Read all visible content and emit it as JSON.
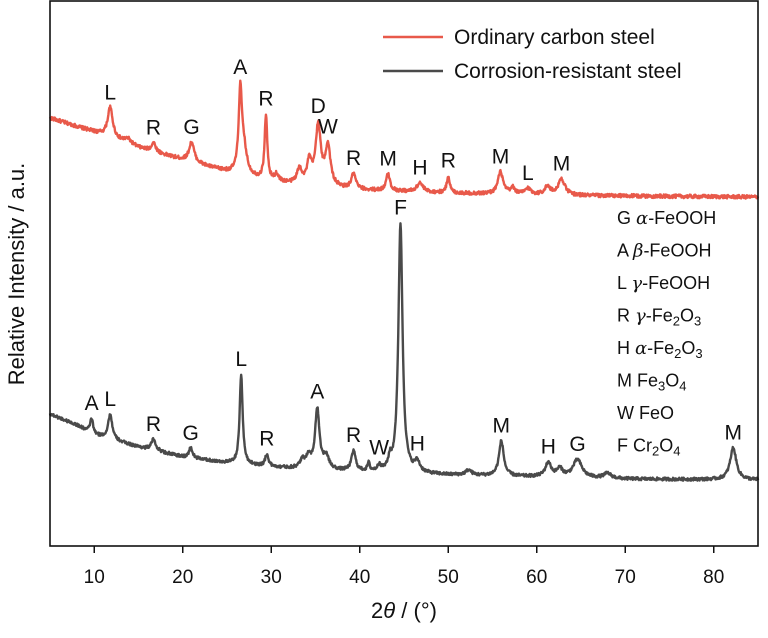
{
  "chart_data": {
    "type": "line",
    "xlabel_prefix": "2",
    "xlabel_symbol": "θ",
    "xlabel_unit": " / (°)",
    "ylabel": "Relative Intensity / a.u.",
    "xlim": [
      5,
      85
    ],
    "xticks": [
      10,
      20,
      30,
      40,
      50,
      60,
      70,
      80
    ],
    "legend_position": "top-right",
    "grid": false,
    "series": [
      {
        "name": "Ordinary carbon steel",
        "color": "#e8594a",
        "baseline": [
          [
            5,
            82
          ],
          [
            10,
            68
          ],
          [
            15,
            52
          ],
          [
            20,
            40
          ],
          [
            25,
            28
          ],
          [
            30,
            18
          ],
          [
            35,
            13
          ],
          [
            40,
            10
          ],
          [
            50,
            7
          ],
          [
            60,
            5
          ],
          [
            70,
            4
          ],
          [
            85,
            3
          ]
        ],
        "noise": 1.8,
        "peaks": [
          {
            "x": 11.8,
            "h": 30,
            "w": 0.35,
            "label": "L"
          },
          {
            "x": 13.8,
            "h": 5,
            "w": 0.5,
            "label": ""
          },
          {
            "x": 16.7,
            "h": 9,
            "w": 0.3,
            "label": "R"
          },
          {
            "x": 21.0,
            "h": 20,
            "w": 0.35,
            "label": "G"
          },
          {
            "x": 26.5,
            "h": 80,
            "w": 0.22,
            "label": "A"
          },
          {
            "x": 26.9,
            "h": 25,
            "w": 0.4,
            "label": ""
          },
          {
            "x": 29.4,
            "h": 65,
            "w": 0.18,
            "label": "R"
          },
          {
            "x": 30.6,
            "h": 7,
            "w": 0.3,
            "label": ""
          },
          {
            "x": 33.2,
            "h": 15,
            "w": 0.35,
            "label": ""
          },
          {
            "x": 34.3,
            "h": 22,
            "w": 0.3,
            "label": ""
          },
          {
            "x": 35.3,
            "h": 60,
            "w": 0.35,
            "label": "D"
          },
          {
            "x": 36.4,
            "h": 40,
            "w": 0.35,
            "label": "W"
          },
          {
            "x": 39.3,
            "h": 15,
            "w": 0.3,
            "label": "R"
          },
          {
            "x": 43.2,
            "h": 17,
            "w": 0.25,
            "label": "M"
          },
          {
            "x": 46.8,
            "h": 9,
            "w": 0.4,
            "label": "H"
          },
          {
            "x": 50.0,
            "h": 17,
            "w": 0.2,
            "label": "R"
          },
          {
            "x": 55.9,
            "h": 22,
            "w": 0.35,
            "label": "M"
          },
          {
            "x": 57.3,
            "h": 6,
            "w": 0.3,
            "label": ""
          },
          {
            "x": 59.0,
            "h": 6,
            "w": 0.4,
            "label": "L"
          },
          {
            "x": 61.2,
            "h": 8,
            "w": 0.4,
            "label": ""
          },
          {
            "x": 62.8,
            "h": 16,
            "w": 0.45,
            "label": "M"
          }
        ]
      },
      {
        "name": "Corrosion-resistant steel",
        "color": "#4a4a4a",
        "baseline": [
          [
            5,
            73
          ],
          [
            8,
            62
          ],
          [
            10,
            52
          ],
          [
            15,
            40
          ],
          [
            20,
            30
          ],
          [
            25,
            24
          ],
          [
            30,
            20
          ],
          [
            35,
            17
          ],
          [
            40,
            15
          ],
          [
            50,
            12
          ],
          [
            60,
            10
          ],
          [
            70,
            8
          ],
          [
            85,
            7
          ]
        ],
        "noise": 1.5,
        "peaks": [
          {
            "x": 9.7,
            "h": 15,
            "w": 0.2,
            "label": "A"
          },
          {
            "x": 11.8,
            "h": 25,
            "w": 0.28,
            "label": "L"
          },
          {
            "x": 16.7,
            "h": 11,
            "w": 0.3,
            "label": "R"
          },
          {
            "x": 20.9,
            "h": 10,
            "w": 0.25,
            "label": "G"
          },
          {
            "x": 26.6,
            "h": 90,
            "w": 0.2,
            "label": "L"
          },
          {
            "x": 29.5,
            "h": 12,
            "w": 0.22,
            "label": "R"
          },
          {
            "x": 33.5,
            "h": 8,
            "w": 0.3,
            "label": ""
          },
          {
            "x": 34.2,
            "h": 12,
            "w": 0.3,
            "label": ""
          },
          {
            "x": 35.2,
            "h": 60,
            "w": 0.3,
            "label": "A"
          },
          {
            "x": 36.2,
            "h": 12,
            "w": 0.4,
            "label": ""
          },
          {
            "x": 39.3,
            "h": 20,
            "w": 0.28,
            "label": "R"
          },
          {
            "x": 41.0,
            "h": 8,
            "w": 0.15,
            "label": ""
          },
          {
            "x": 42.2,
            "h": 6,
            "w": 0.2,
            "label": "W"
          },
          {
            "x": 43.4,
            "h": 10,
            "w": 0.2,
            "label": ""
          },
          {
            "x": 44.6,
            "h": 250,
            "w": 0.28,
            "label": "F"
          },
          {
            "x": 46.5,
            "h": 10,
            "w": 0.35,
            "label": "H"
          },
          {
            "x": 52.3,
            "h": 5,
            "w": 0.4,
            "label": ""
          },
          {
            "x": 56.0,
            "h": 35,
            "w": 0.32,
            "label": "M"
          },
          {
            "x": 61.3,
            "h": 14,
            "w": 0.4,
            "label": "H"
          },
          {
            "x": 62.6,
            "h": 8,
            "w": 0.4,
            "label": ""
          },
          {
            "x": 64.6,
            "h": 18,
            "w": 0.6,
            "label": "G"
          },
          {
            "x": 68.0,
            "h": 5,
            "w": 0.5,
            "label": ""
          },
          {
            "x": 82.2,
            "h": 32,
            "w": 0.42,
            "label": "M"
          }
        ]
      }
    ],
    "key": [
      {
        "letter": "G",
        "prefix": "",
        "greek": "α",
        "rest": "-FeOOH",
        "sub1": "",
        "mid": "",
        "sub2": ""
      },
      {
        "letter": "A",
        "prefix": "",
        "greek": "β",
        "rest": "-FeOOH",
        "sub1": "",
        "mid": "",
        "sub2": ""
      },
      {
        "letter": "L",
        "prefix": "",
        "greek": "γ",
        "rest": "-FeOOH",
        "sub1": "",
        "mid": "",
        "sub2": ""
      },
      {
        "letter": "R",
        "prefix": "",
        "greek": "γ",
        "rest": "-Fe",
        "sub1": "2",
        "mid": "O",
        "sub2": "3"
      },
      {
        "letter": "H",
        "prefix": "",
        "greek": "α",
        "rest": "-Fe",
        "sub1": "2",
        "mid": "O",
        "sub2": "3"
      },
      {
        "letter": "M",
        "prefix": "Fe",
        "greek": "",
        "rest": "",
        "sub1": "3",
        "mid": "O",
        "sub2": "4"
      },
      {
        "letter": "W",
        "prefix": "FeO",
        "greek": "",
        "rest": "",
        "sub1": "",
        "mid": "",
        "sub2": ""
      },
      {
        "letter": "F",
        "prefix": "Cr",
        "greek": "",
        "rest": "",
        "sub1": "2",
        "mid": "O",
        "sub2": "4"
      }
    ]
  }
}
